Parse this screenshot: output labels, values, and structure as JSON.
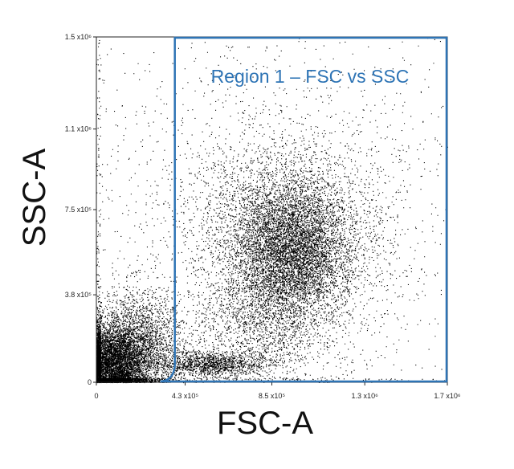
{
  "chart_data": {
    "type": "scatter",
    "xlabel": "FSC-A",
    "ylabel": "SSC-A",
    "xlim": [
      0,
      1700000
    ],
    "ylim": [
      0,
      1500000
    ],
    "x_ticks": [
      {
        "value": 0,
        "label": "0"
      },
      {
        "value": 430000,
        "label": "4.3 x10⁵"
      },
      {
        "value": 850000,
        "label": "8.5 x10⁵"
      },
      {
        "value": 1300000,
        "label": "1.3 x10⁶"
      },
      {
        "value": 1700000,
        "label": "1.7 x10⁶"
      }
    ],
    "y_ticks": [
      {
        "value": 0,
        "label": "0"
      },
      {
        "value": 380000,
        "label": "3.8 x10⁵"
      },
      {
        "value": 750000,
        "label": "7.5 x10⁵"
      },
      {
        "value": 1100000,
        "label": "1.1 x10⁶"
      },
      {
        "value": 1500000,
        "label": "1.5 x10⁶"
      }
    ],
    "point_color": "#000000",
    "populations": [
      {
        "center": [
          70000,
          70000
        ],
        "spread": [
          90000,
          90000
        ],
        "count": 6500
      },
      {
        "center": [
          200000,
          160000
        ],
        "spread": [
          110000,
          120000
        ],
        "count": 2500
      },
      {
        "center": [
          950000,
          580000
        ],
        "spread": [
          140000,
          150000
        ],
        "count": 5500
      },
      {
        "center": [
          900000,
          620000
        ],
        "spread": [
          260000,
          240000
        ],
        "count": 3500
      },
      {
        "center": [
          560000,
          80000
        ],
        "spread": [
          130000,
          30000
        ],
        "count": 1400
      },
      {
        "center": [
          800000,
          250000
        ],
        "spread": [
          160000,
          130000
        ],
        "count": 1200
      },
      {
        "center": [
          850000,
          750000
        ],
        "spread": [
          550000,
          500000
        ],
        "count": 1800
      }
    ],
    "gate": {
      "name": "Region 1 – FSC vs SSC",
      "color": "#2e74b5",
      "x_range": [
        380000,
        1700000
      ],
      "y_range": [
        0,
        1500000
      ]
    },
    "grid": false
  }
}
